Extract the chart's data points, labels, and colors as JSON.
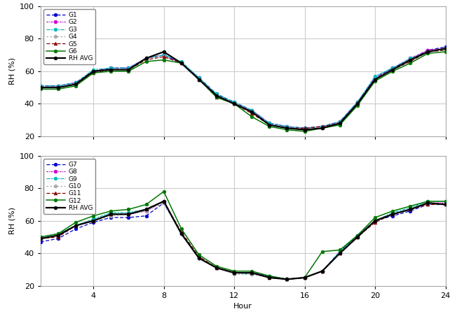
{
  "hours": [
    1,
    2,
    3,
    4,
    5,
    6,
    7,
    8,
    9,
    10,
    11,
    12,
    13,
    14,
    15,
    16,
    17,
    18,
    19,
    20,
    21,
    22,
    23,
    24
  ],
  "top": {
    "G1": [
      51,
      51,
      53,
      60,
      62,
      62,
      68,
      70,
      65,
      56,
      46,
      41,
      36,
      28,
      26,
      25,
      26,
      29,
      41,
      56,
      62,
      67,
      73,
      75
    ],
    "G2": [
      51,
      51,
      53,
      60,
      62,
      62,
      68,
      70,
      65,
      56,
      45,
      40,
      36,
      28,
      26,
      25,
      26,
      29,
      41,
      56,
      62,
      68,
      73,
      74
    ],
    "G3": [
      51,
      51,
      53,
      61,
      62,
      62,
      68,
      70,
      66,
      56,
      46,
      41,
      36,
      28,
      26,
      25,
      26,
      29,
      41,
      57,
      62,
      68,
      72,
      74
    ],
    "G4": [
      50,
      50,
      52,
      60,
      61,
      61,
      68,
      69,
      65,
      55,
      45,
      40,
      35,
      27,
      25,
      24,
      25,
      28,
      40,
      55,
      61,
      66,
      72,
      73
    ],
    "G5": [
      50,
      50,
      52,
      59,
      61,
      61,
      67,
      69,
      65,
      55,
      44,
      40,
      34,
      27,
      25,
      25,
      26,
      28,
      40,
      55,
      61,
      66,
      72,
      73
    ],
    "G6": [
      49,
      49,
      51,
      59,
      60,
      60,
      66,
      67,
      65,
      55,
      44,
      40,
      32,
      26,
      24,
      23,
      25,
      27,
      39,
      54,
      60,
      65,
      71,
      72
    ],
    "RHAVG": [
      50,
      50,
      52,
      60,
      61,
      61,
      68,
      72,
      65,
      55,
      45,
      40,
      35,
      27,
      25,
      24,
      25,
      28,
      40,
      55,
      61,
      67,
      72,
      74
    ]
  },
  "bottom": {
    "G7": [
      47,
      49,
      55,
      59,
      62,
      62,
      63,
      71,
      52,
      37,
      31,
      28,
      28,
      26,
      24,
      25,
      29,
      41,
      51,
      60,
      63,
      66,
      70,
      70
    ],
    "G8": [
      49,
      51,
      57,
      60,
      64,
      64,
      66,
      72,
      52,
      37,
      31,
      28,
      28,
      26,
      24,
      25,
      29,
      40,
      50,
      60,
      64,
      67,
      71,
      71
    ],
    "G9": [
      50,
      52,
      57,
      61,
      65,
      65,
      67,
      72,
      52,
      37,
      31,
      28,
      27,
      26,
      24,
      25,
      29,
      41,
      51,
      60,
      65,
      68,
      72,
      72
    ],
    "G10": [
      49,
      51,
      57,
      60,
      63,
      64,
      66,
      71,
      52,
      37,
      31,
      27,
      27,
      25,
      24,
      25,
      29,
      40,
      50,
      60,
      64,
      67,
      70,
      70
    ],
    "G11": [
      49,
      50,
      57,
      60,
      64,
      64,
      67,
      72,
      53,
      38,
      31,
      28,
      28,
      25,
      24,
      25,
      29,
      40,
      50,
      59,
      64,
      67,
      70,
      70
    ],
    "G12": [
      50,
      52,
      59,
      63,
      66,
      67,
      70,
      78,
      55,
      39,
      32,
      29,
      29,
      26,
      24,
      25,
      41,
      42,
      51,
      62,
      66,
      69,
      72,
      72
    ],
    "RHAVG": [
      49,
      51,
      57,
      60,
      64,
      64,
      67,
      72,
      52,
      37,
      31,
      28,
      28,
      25,
      24,
      25,
      29,
      40,
      50,
      60,
      64,
      67,
      71,
      70
    ]
  },
  "top_series": [
    {
      "key": "G1",
      "label": "G1",
      "color": "#0000CC",
      "lw": 0.9,
      "ls": "--",
      "marker": "o",
      "ms": 3.5,
      "mfc": "#0000CC",
      "dashes": [
        4,
        2
      ]
    },
    {
      "key": "G2",
      "label": "G2",
      "color": "#CC00CC",
      "lw": 0.9,
      "ls": "--",
      "marker": "o",
      "ms": 3.5,
      "mfc": "#CC00CC",
      "dashes": [
        2,
        1,
        1,
        1
      ]
    },
    {
      "key": "G3",
      "label": "G3",
      "color": "#00BBBB",
      "lw": 0.9,
      "ls": "--",
      "marker": "o",
      "ms": 3.5,
      "mfc": "#00BBBB",
      "dashes": [
        4,
        1,
        2,
        1
      ]
    },
    {
      "key": "G4",
      "label": "G4",
      "color": "#AAAAAA",
      "lw": 0.9,
      "ls": "--",
      "marker": "o",
      "ms": 3.5,
      "mfc": "#AAAAAA",
      "dashes": [
        2,
        2
      ]
    },
    {
      "key": "G5",
      "label": "G5",
      "color": "#880000",
      "lw": 0.9,
      "ls": "--",
      "marker": "^",
      "ms": 3.5,
      "mfc": "#880000",
      "dashes": [
        4,
        2
      ]
    },
    {
      "key": "G6",
      "label": "G6",
      "color": "#007700",
      "lw": 1.1,
      "ls": "-",
      "marker": "o",
      "ms": 3.5,
      "mfc": "#007700",
      "dashes": null
    },
    {
      "key": "RHAVG",
      "label": "RH AVG",
      "color": "#000000",
      "lw": 1.6,
      "ls": "-",
      "marker": "o",
      "ms": 3.5,
      "mfc": "#000000",
      "dashes": null
    }
  ],
  "bottom_series": [
    {
      "key": "G7",
      "label": "G7",
      "color": "#0000CC",
      "lw": 0.9,
      "ls": "--",
      "marker": "o",
      "ms": 3.5,
      "mfc": "#0000CC",
      "dashes": [
        4,
        2
      ]
    },
    {
      "key": "G8",
      "label": "G8",
      "color": "#CC00CC",
      "lw": 0.9,
      "ls": "--",
      "marker": "o",
      "ms": 3.5,
      "mfc": "#CC00CC",
      "dashes": [
        2,
        1,
        1,
        1
      ]
    },
    {
      "key": "G9",
      "label": "G9",
      "color": "#00BBBB",
      "lw": 0.9,
      "ls": "--",
      "marker": "o",
      "ms": 3.5,
      "mfc": "#00BBBB",
      "dashes": [
        4,
        1,
        2,
        1
      ]
    },
    {
      "key": "G10",
      "label": "G10",
      "color": "#AAAAAA",
      "lw": 0.9,
      "ls": "--",
      "marker": "o",
      "ms": 3.5,
      "mfc": "#AAAAAA",
      "dashes": [
        2,
        2
      ]
    },
    {
      "key": "G11",
      "label": "G11",
      "color": "#880000",
      "lw": 0.9,
      "ls": "--",
      "marker": "^",
      "ms": 3.5,
      "mfc": "#880000",
      "dashes": [
        4,
        2
      ]
    },
    {
      "key": "G12",
      "label": "G12",
      "color": "#007700",
      "lw": 1.1,
      "ls": "-",
      "marker": "o",
      "ms": 3.5,
      "mfc": "#007700",
      "dashes": null
    },
    {
      "key": "RHAVG",
      "label": "RH AVG",
      "color": "#000000",
      "lw": 1.6,
      "ls": "-",
      "marker": "o",
      "ms": 3.5,
      "mfc": "#000000",
      "dashes": null
    }
  ],
  "ylabel": "RH (%)",
  "xlabel": "Hour",
  "ylim": [
    20,
    100
  ],
  "xlim": [
    1,
    24
  ],
  "xticks": [
    4,
    8,
    12,
    16,
    20,
    24
  ],
  "yticks": [
    20,
    40,
    60,
    80,
    100
  ],
  "bg_color": "#ffffff",
  "grid_color": "#cccccc",
  "legend_fontsize": 6.5,
  "axis_fontsize": 8
}
